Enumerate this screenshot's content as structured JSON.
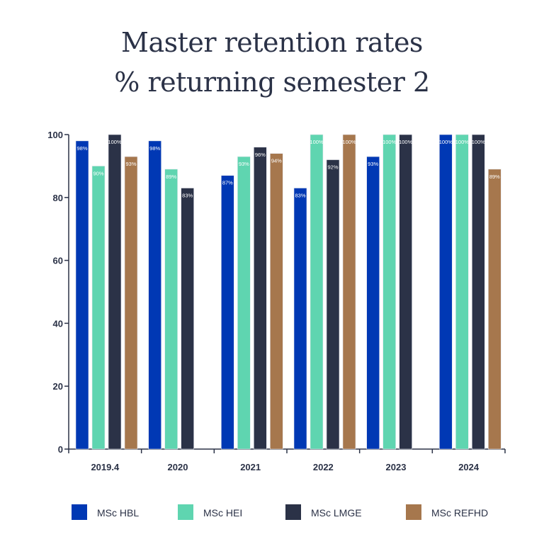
{
  "chart_data": {
    "type": "bar",
    "title": [
      "Master retention rates",
      "% returning semester 2"
    ],
    "xlabel": "",
    "ylabel": "",
    "ylim": [
      0,
      100
    ],
    "yticks": [
      0,
      20,
      40,
      60,
      80,
      100
    ],
    "categories": [
      "2019.4",
      "2020",
      "2021",
      "2022",
      "2023",
      "2024"
    ],
    "value_suffix": "%",
    "series": [
      {
        "name": "MSc HBL",
        "color": "#0038b4",
        "values": [
          98,
          98,
          87,
          83,
          93,
          100
        ]
      },
      {
        "name": "MSc HEI",
        "color": "#5fd5b0",
        "values": [
          90,
          89,
          93,
          100,
          100,
          100
        ]
      },
      {
        "name": "MSc LMGE",
        "color": "#2b3247",
        "values": [
          100,
          83,
          96,
          92,
          100,
          100
        ]
      },
      {
        "name": "MSc REFHD",
        "color": "#a6774d",
        "values": [
          93,
          null,
          94,
          100,
          null,
          89
        ]
      }
    ],
    "legend": "bottom"
  }
}
